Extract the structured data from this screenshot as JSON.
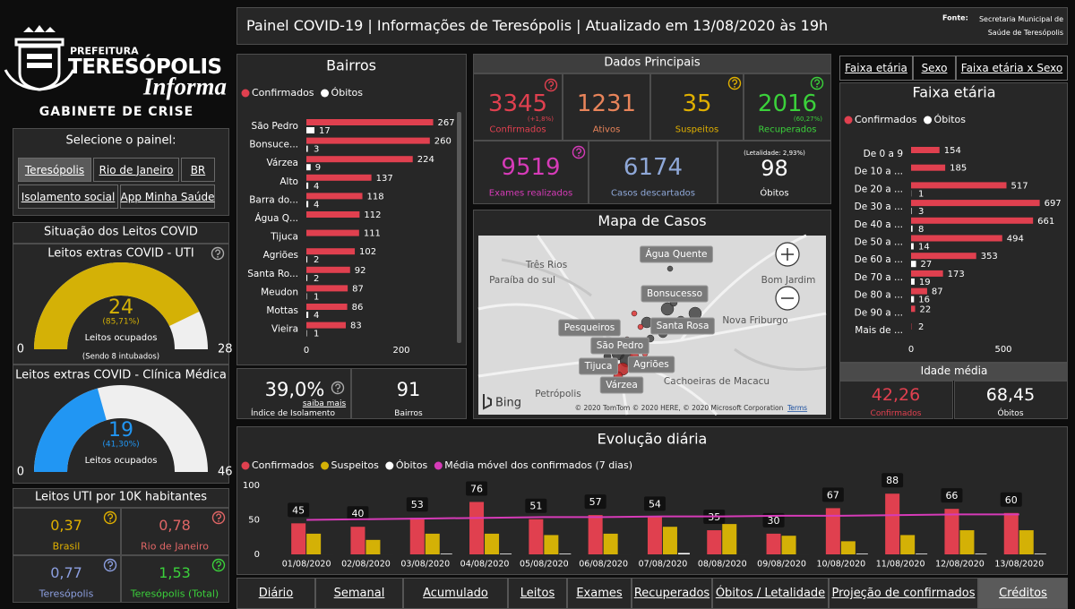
{
  "logo": {
    "line1": "PREFEITURA",
    "line2": "TERESÓPOLIS",
    "line3": "Informa",
    "line4": "GABINETE DE CRISE"
  },
  "header": {
    "title": "Painel COVID-19 | Informações de Teresópolis | Atualizado em 13/08/2020 às 19h",
    "source_label": "Fonte:",
    "source": "Secretaria Municipal de Saúde de Teresópolis"
  },
  "selector": {
    "title": "Selecione o painel:",
    "buttons": [
      "Teresópolis",
      "Rio de Janeiro",
      "BR",
      "Isolamento social",
      "App Minha Saúde"
    ]
  },
  "leitos": {
    "title": "Situação dos Leitos COVID"
  },
  "uti_10k": {
    "title": "Leitos UTI por 10K habitantes",
    "items": [
      {
        "value": "0,37",
        "label": "Brasil",
        "color": "#e0b000"
      },
      {
        "value": "0,78",
        "label": "Rio de Janeiro",
        "color": "#e06666"
      },
      {
        "value": "0,77",
        "label": "Teresópolis",
        "color": "#8c9fe0"
      },
      {
        "value": "1,53",
        "label": "Teresópolis (Total)",
        "color": "#3bd13b"
      }
    ]
  },
  "bairros_summary": {
    "isolamento": "39,0%",
    "link": "saiba mais",
    "isolamento_label": "Índice de Isolamento",
    "bairros": "91",
    "bairros_label": "Bairros"
  },
  "dados_principais": {
    "title": "Dados Principais",
    "cards": [
      {
        "value": "3345",
        "note": "(+1,8%)",
        "label": "Confirmados",
        "color": "#e0404f"
      },
      {
        "value": "1231",
        "label": "Ativos",
        "color": "#e8845a"
      },
      {
        "value": "35",
        "label": "Suspeitos",
        "color": "#e0b000"
      },
      {
        "value": "2016",
        "note": "(60,27%)",
        "label": "Recuperados",
        "color": "#3bd13b"
      },
      {
        "value": "9519",
        "label": "Exames realizados",
        "color": "#d63bb8"
      },
      {
        "value": "6174",
        "label": "Casos descartados",
        "color": "#8fa8d8"
      },
      {
        "value": "98",
        "note_above": "(Letalidade: 2,93%)",
        "label": "Óbitos",
        "color": "#ffffff"
      }
    ]
  },
  "mapa": {
    "title": "Mapa de Casos",
    "places": [
      "Água Quente",
      "Bonsucesso",
      "Pesqueiros",
      "Santa Rosa",
      "São Pedro",
      "Agriões",
      "Tijuca",
      "Várzea"
    ],
    "base_labels": [
      "Três Rios",
      "Paraíba do sul",
      "Bom Jardim",
      "Nova Friburgo",
      "Cachoeiras de Macacu",
      "Petrópolis"
    ],
    "logo": "Bing",
    "copyright": "© 2020 TomTom © 2020 HERE, © 2020 Microsoft Corporation",
    "terms": "Terms"
  },
  "faixa_tabs": [
    "Faixa etária",
    "Sexo",
    "Faixa etária x Sexo"
  ],
  "idade_media": {
    "title": "Idade média",
    "items": [
      {
        "value": "42,26",
        "label": "Confirmados",
        "color": "#e0404f"
      },
      {
        "value": "68,45",
        "label": "Óbitos",
        "color": "#ffffff"
      }
    ]
  },
  "nav": [
    "Diário",
    "Semanal",
    "Acumulado",
    "Leitos",
    "Exames",
    "Recuperados",
    "Óbitos / Letalidade",
    "Projeção de confirmados",
    "Créditos"
  ],
  "chart_data": [
    {
      "type": "gauge",
      "title": "Leitos extras COVID - UTI",
      "value": 24,
      "percent_label": "(85,71%)",
      "label": "Leitos ocupados",
      "note": "(Sendo 8 intubados)",
      "lim": [
        0,
        28
      ],
      "ticks": [
        0,
        28
      ],
      "color": "#d4b106"
    },
    {
      "type": "gauge",
      "title": "Leitos extras COVID - Clínica Médica",
      "value": 19,
      "percent_label": "(41,30%)",
      "label": "Leitos ocupados",
      "lim": [
        0,
        46
      ],
      "ticks": [
        0,
        46
      ],
      "color": "#2196f3"
    },
    {
      "type": "hbar",
      "title": "Bairros",
      "categories": [
        "São Pedro",
        "Bonsuce...",
        "Várzea",
        "Alto",
        "Barra do...",
        "Água Q...",
        "Tijuca",
        "Agriões",
        "Santa Ro...",
        "Meudon",
        "Mottas",
        "Vieira"
      ],
      "series": [
        {
          "name": "Confirmados",
          "color": "#e0404f",
          "values": [
            267,
            260,
            224,
            137,
            118,
            112,
            111,
            102,
            92,
            87,
            86,
            83
          ]
        },
        {
          "name": "Óbitos",
          "color": "#ffffff",
          "values": [
            17,
            3,
            9,
            4,
            4,
            null,
            null,
            2,
            2,
            1,
            4,
            1
          ]
        }
      ],
      "xlim": [
        0,
        300
      ],
      "xticks": [
        0,
        200
      ]
    },
    {
      "type": "hbar",
      "title": "Faixa etária",
      "categories": [
        "De 0 a 9",
        "De 10 a ...",
        "De 20 a ...",
        "De 30 a ...",
        "De 40 a ...",
        "De 50 a ...",
        "De 60 a ...",
        "De 70 a ...",
        "De 80 a ...",
        "De 90 a ...",
        "Mais de ..."
      ],
      "series": [
        {
          "name": "Confirmados",
          "color": "#e0404f",
          "values": [
            154,
            185,
            517,
            697,
            661,
            494,
            353,
            173,
            87,
            22,
            2
          ]
        },
        {
          "name": "Óbitos",
          "color": "#ffffff",
          "values": [
            null,
            null,
            1,
            3,
            8,
            14,
            27,
            19,
            16,
            null,
            null
          ]
        }
      ],
      "xlim": [
        0,
        750
      ],
      "xticks": [
        0,
        500
      ]
    },
    {
      "type": "bar",
      "title": "Evolução diária",
      "categories": [
        "01/08/2020",
        "02/08/2020",
        "03/08/2020",
        "04/08/2020",
        "05/08/2020",
        "06/08/2020",
        "07/08/2020",
        "08/08/2020",
        "09/08/2020",
        "10/08/2020",
        "11/08/2020",
        "12/08/2020",
        "13/08/2020"
      ],
      "series": [
        {
          "name": "Confirmados",
          "color": "#e0404f",
          "data_labels": true,
          "values": [
            45,
            40,
            53,
            76,
            51,
            57,
            54,
            35,
            30,
            67,
            88,
            66,
            60
          ]
        },
        {
          "name": "Suspeitos",
          "color": "#d4b106",
          "values": [
            30,
            21,
            30,
            30,
            28,
            30,
            40,
            44,
            27,
            19,
            28,
            35,
            35
          ]
        },
        {
          "name": "Óbitos",
          "color": "#ffffff",
          "values": [
            0,
            0,
            1,
            1,
            1,
            0,
            2,
            0,
            0,
            1,
            1,
            1,
            1
          ]
        },
        {
          "name": "Média móvel dos confirmados (7 dias)",
          "color": "#d63bb8",
          "type": "line",
          "values": [
            50,
            51,
            52,
            53,
            54,
            54,
            55,
            55,
            56,
            56,
            57,
            58,
            58
          ]
        }
      ],
      "ylim": [
        0,
        100
      ],
      "yticks": [
        0,
        50,
        100
      ]
    }
  ]
}
